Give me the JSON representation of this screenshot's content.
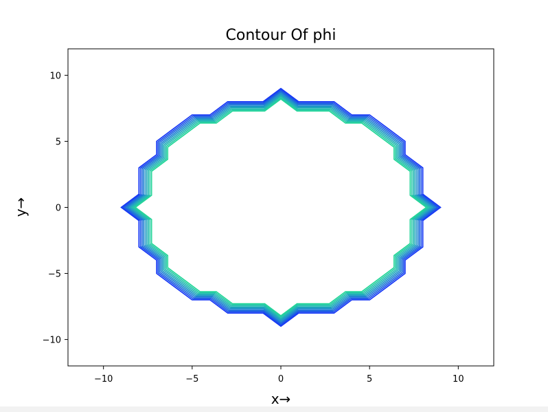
{
  "chart_data": {
    "type": "line",
    "title": "Contour Of phi",
    "xlabel": "x→",
    "ylabel": "y→",
    "xlim": [
      -12,
      12
    ],
    "ylim": [
      -12,
      12
    ],
    "xticks": [
      -10,
      -5,
      0,
      5,
      10
    ],
    "yticks": [
      -10,
      -5,
      0,
      5,
      10
    ],
    "xtick_labels": [
      "−10",
      "−5",
      "0",
      "5",
      "10"
    ],
    "ytick_labels": [
      "−10",
      "−5",
      "0",
      "5",
      "10"
    ],
    "grid": false,
    "levels": [
      {
        "r": 8.2,
        "color": "#1fd596"
      },
      {
        "r": 8.3,
        "color": "#1ec7a2"
      },
      {
        "r": 8.4,
        "color": "#1db8ae"
      },
      {
        "r": 8.5,
        "color": "#1ba6ba"
      },
      {
        "r": 8.6,
        "color": "#1a92c6"
      },
      {
        "r": 8.7,
        "color": "#187cd2"
      },
      {
        "r": 8.8,
        "color": "#1764de"
      },
      {
        "r": 8.9,
        "color": "#154aea"
      },
      {
        "r": 9.0,
        "color": "#1133f5"
      }
    ],
    "contour_shape": [
      [
        1.0,
        0.0
      ],
      [
        0.889,
        0.111
      ],
      [
        0.889,
        0.333
      ],
      [
        0.778,
        0.444
      ],
      [
        0.778,
        0.556
      ],
      [
        0.667,
        0.667
      ],
      [
        0.556,
        0.778
      ],
      [
        0.444,
        0.778
      ],
      [
        0.333,
        0.889
      ],
      [
        0.111,
        0.889
      ],
      [
        0.0,
        1.0
      ],
      [
        -0.111,
        0.889
      ],
      [
        -0.333,
        0.889
      ],
      [
        -0.444,
        0.778
      ],
      [
        -0.556,
        0.778
      ],
      [
        -0.667,
        0.667
      ],
      [
        -0.778,
        0.556
      ],
      [
        -0.778,
        0.444
      ],
      [
        -0.889,
        0.333
      ],
      [
        -0.889,
        0.111
      ],
      [
        -1.0,
        0.0
      ],
      [
        -0.889,
        -0.111
      ],
      [
        -0.889,
        -0.333
      ],
      [
        -0.778,
        -0.444
      ],
      [
        -0.778,
        -0.556
      ],
      [
        -0.667,
        -0.667
      ],
      [
        -0.556,
        -0.778
      ],
      [
        -0.444,
        -0.778
      ],
      [
        -0.333,
        -0.889
      ],
      [
        -0.111,
        -0.889
      ],
      [
        0.0,
        -1.0
      ],
      [
        0.111,
        -0.889
      ],
      [
        0.333,
        -0.889
      ],
      [
        0.444,
        -0.778
      ],
      [
        0.556,
        -0.778
      ],
      [
        0.667,
        -0.667
      ],
      [
        0.778,
        -0.556
      ],
      [
        0.778,
        -0.444
      ],
      [
        0.889,
        -0.333
      ],
      [
        0.889,
        -0.111
      ]
    ]
  }
}
